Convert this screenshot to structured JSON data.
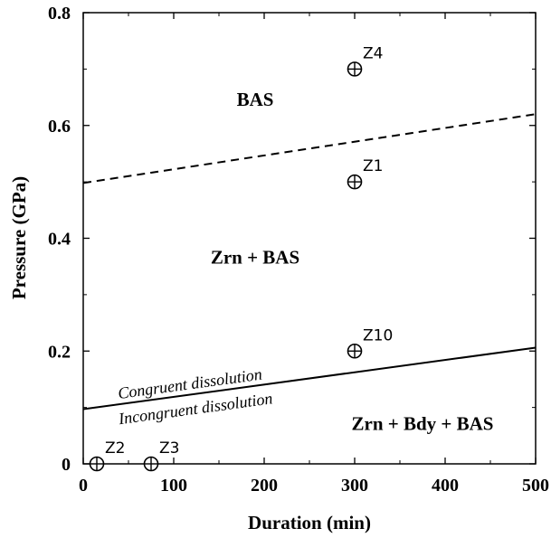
{
  "chart_data": {
    "type": "scatter",
    "xlabel": "Duration (min)",
    "ylabel": "Pressure (GPa)",
    "xlim": [
      0,
      500
    ],
    "ylim": [
      0,
      0.8
    ],
    "xticks": [
      0,
      100,
      200,
      300,
      400,
      500
    ],
    "yticks": [
      0,
      0.2,
      0.4,
      0.6,
      0.8
    ],
    "xtick_labels": [
      "0",
      "100",
      "200",
      "300",
      "400",
      "500"
    ],
    "ytick_labels": [
      "0",
      "0.2",
      "0.4",
      "0.6",
      "0.8"
    ],
    "grid": false,
    "points": [
      {
        "label": "Z4",
        "x": 300,
        "y": 0.7
      },
      {
        "label": "Z1",
        "x": 300,
        "y": 0.5
      },
      {
        "label": "Z10",
        "x": 300,
        "y": 0.2
      },
      {
        "label": "Z2",
        "x": 15,
        "y": 0
      },
      {
        "label": "Z3",
        "x": 75,
        "y": 0
      }
    ],
    "lines": [
      {
        "style": "dashed",
        "x": [
          0,
          500
        ],
        "y": [
          0.498,
          0.62
        ]
      },
      {
        "style": "solid",
        "x": [
          0,
          500
        ],
        "y": [
          0.097,
          0.206
        ]
      }
    ],
    "line_labels": {
      "above": "Congruent dissolution",
      "below": "Incongruent dissolution"
    },
    "regions": [
      {
        "text": "BAS",
        "x": 190,
        "y": 0.635
      },
      {
        "text": "Zrn + BAS",
        "x": 190,
        "y": 0.355
      },
      {
        "text": "Zrn + Bdy + BAS",
        "x": 375,
        "y": 0.06
      }
    ]
  }
}
